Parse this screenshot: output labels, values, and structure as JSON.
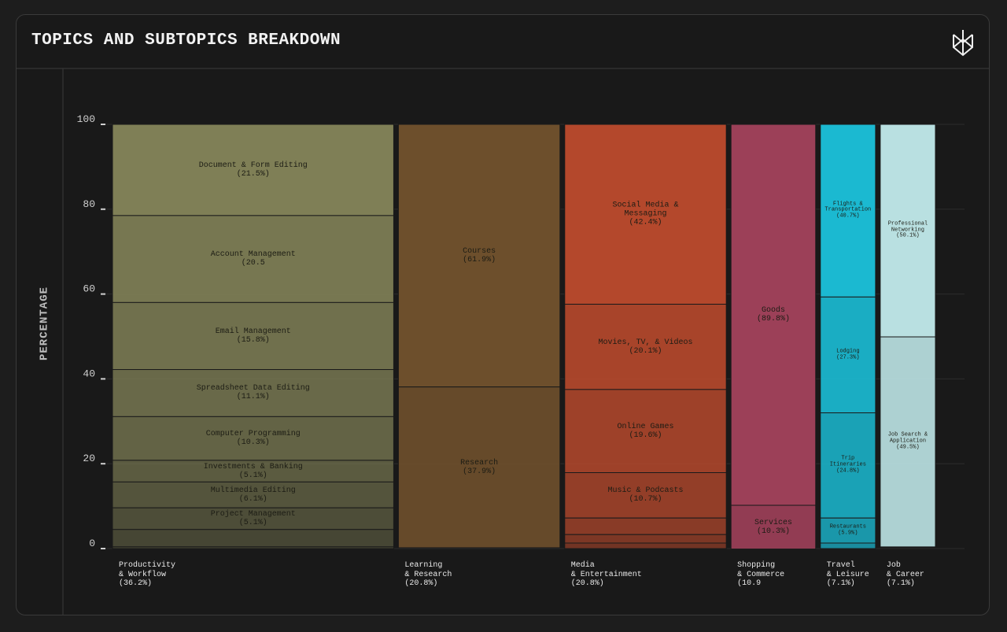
{
  "chart_data": {
    "type": "marimekko",
    "title": "TOPICS AND SUBTOPICS BREAKDOWN",
    "y_label": "PERCENTAGE",
    "ylim": [
      0,
      100
    ],
    "yticks": [
      0,
      20,
      40,
      60,
      80,
      100
    ],
    "grid": true,
    "categories": [
      "Productivity\n& Workflow",
      "Learning\n& Research",
      "Media\n& Entertainment",
      "Shopping\n& Commerce",
      "Travel\n& Leisure",
      "Job\n& Career"
    ],
    "values": [
      36.2,
      20.8,
      20.8,
      10.9,
      7.1,
      7.1
    ],
    "value_labels": [
      "(36.2%)",
      "(20.8%)",
      "(20.8%)",
      "(10.9",
      "(7.1%)",
      "(7.1%)"
    ],
    "colors": [
      "#7f7f56",
      "#6d4f2c",
      "#b4482c",
      "#9c4058",
      "#1bb9d1",
      "#b9e0e1"
    ],
    "segments": [
      {
        "names": [
          "Document & Form Editing",
          "Account Management",
          "Email Management",
          "Spreadsheet Data Editing",
          "Computer Programming",
          "Investments & Banking",
          "Multimedia Editing",
          "Project Management",
          null,
          null
        ],
        "values": [
          21.5,
          20.5,
          15.8,
          11.1,
          10.3,
          5.1,
          6.1,
          5.1,
          4.1,
          0.4
        ],
        "value_labels": [
          "(21.5%)",
          "(20.5",
          "(15.8%)",
          "(11.1%)",
          "(10.3%)",
          "(5.1%)",
          "(6.1%)",
          "(5.1%)",
          null,
          null
        ]
      },
      {
        "names": [
          "Courses",
          "Research"
        ],
        "values": [
          61.9,
          37.9
        ],
        "value_labels": [
          "(61.9%)",
          "(37.9%)"
        ]
      },
      {
        "names": [
          "Social Media &\nMessaging",
          "Movies, TV, & Videos",
          "Online Games",
          "Music & Podcasts",
          null,
          null,
          null
        ],
        "values": [
          42.4,
          20.1,
          19.6,
          10.7,
          3.9,
          2.0,
          1.3
        ],
        "value_labels": [
          "(42.4%)",
          "(20.1%)",
          "(19.6%)",
          "(10.7%)",
          null,
          null,
          null
        ]
      },
      {
        "names": [
          "Goods",
          "Services"
        ],
        "values": [
          89.8,
          10.3
        ],
        "value_labels": [
          "(89.8%)",
          "(10.3%)"
        ]
      },
      {
        "names": [
          "Flights &\nTransportation",
          "Lodging",
          "Trip\nItineraries",
          "Restaurants",
          null
        ],
        "values": [
          40.7,
          27.3,
          24.8,
          5.9,
          1.3
        ],
        "value_labels": [
          "(40.7%)",
          "(27.3%)",
          "(24.8%)",
          "(5.9%)",
          null
        ]
      },
      {
        "names": [
          "Professional\nNetworking",
          "Job Search &\nApplication"
        ],
        "values": [
          50.1,
          49.5
        ],
        "value_labels": [
          "(50.1%)",
          "(49.5%)"
        ]
      }
    ]
  }
}
